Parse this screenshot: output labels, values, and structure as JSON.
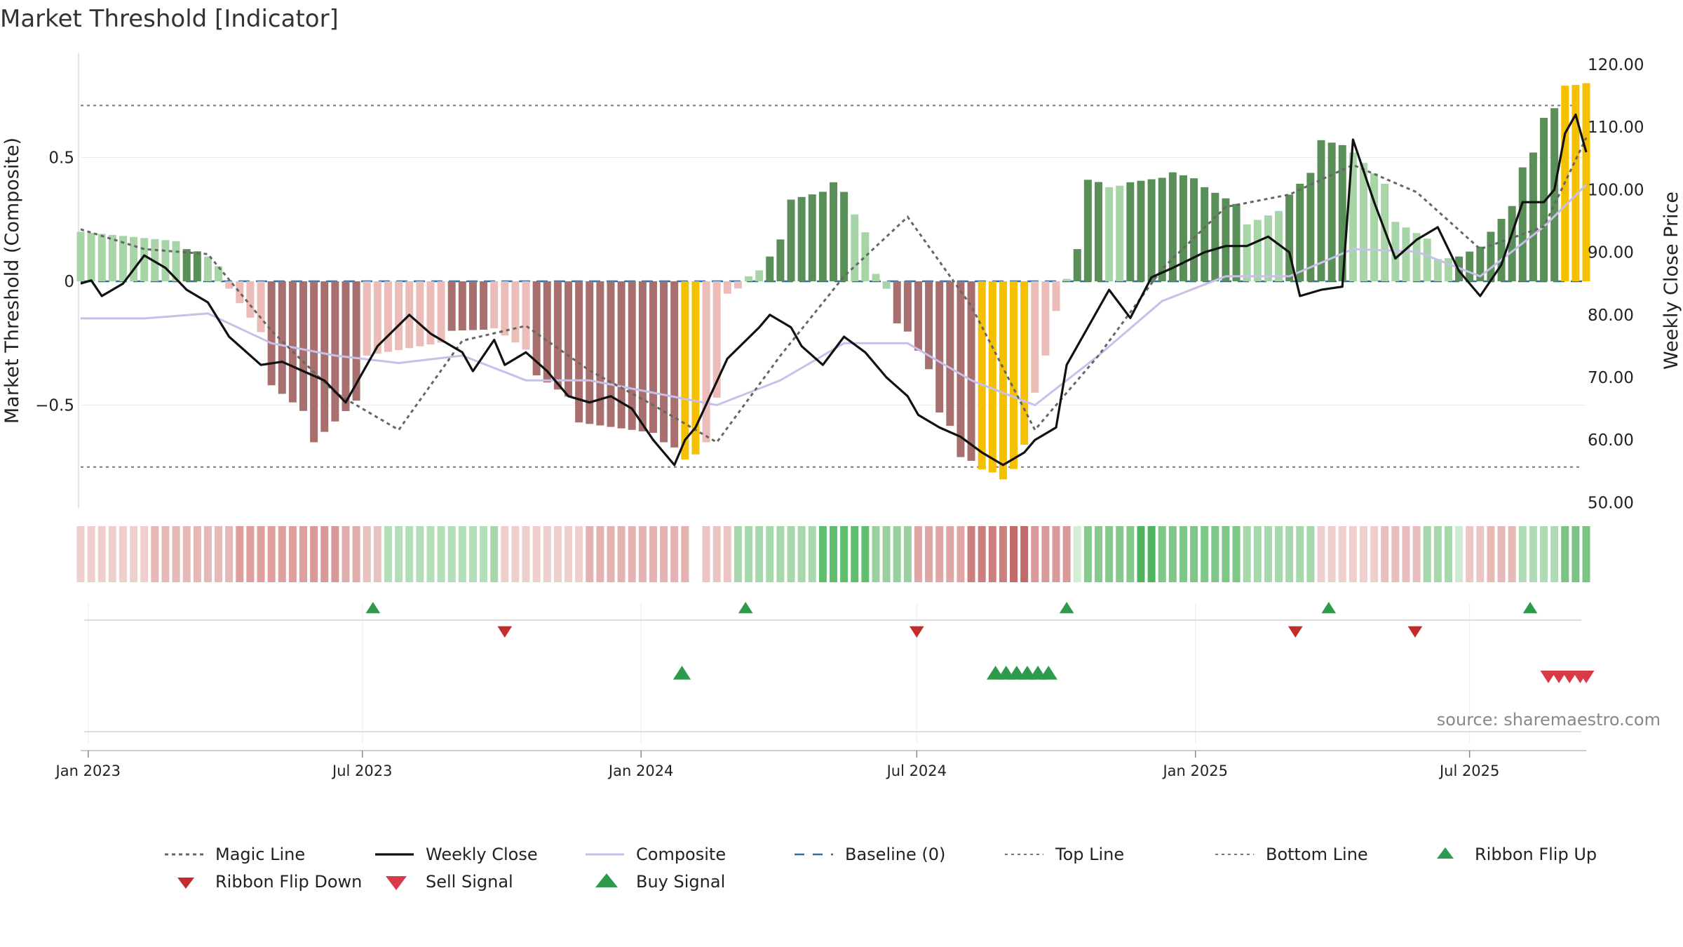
{
  "title": "Market Threshold [Indicator]",
  "source": "source: sharemaestro.com",
  "colors": {
    "pos_strong": "#5a8f5a",
    "pos_weak": "#a8d5a8",
    "neg_strong": "#a86f6f",
    "neg_weak": "#ecbcb8",
    "extreme": "#f5c000",
    "weekly_close": "#111111",
    "composite": "#c7c0e8",
    "magic_line": "#666666",
    "baseline": "#2f6f9f",
    "buy": "#2e9a4c",
    "sell": "#d83a48",
    "flip_down": "#c42b2b"
  },
  "chart_data": {
    "type": "bar",
    "title": "Market Threshold [Indicator]",
    "ylabel": "Market Threshold (Composite)",
    "y2label": "Weekly Close Price",
    "ylim": [
      -0.9,
      0.9
    ],
    "y2lim": [
      47,
      123
    ],
    "x_start": "2022-12-27",
    "x_end": "2025-09-16",
    "yticks": [
      {
        "v": 0.5,
        "label": "0.5"
      },
      {
        "v": 0,
        "label": "0"
      },
      {
        "v": -0.5,
        "label": "−0.5"
      }
    ],
    "y2ticks": [
      {
        "v": 120,
        "label": "120.00"
      },
      {
        "v": 110,
        "label": "110.00"
      },
      {
        "v": 100,
        "label": "100.00"
      },
      {
        "v": 90,
        "label": "90.00"
      },
      {
        "v": 80,
        "label": "80.00"
      },
      {
        "v": 70,
        "label": "70.00"
      },
      {
        "v": 60,
        "label": "60.00"
      },
      {
        "v": 50,
        "label": "50.00"
      }
    ],
    "xticks": [
      {
        "date": "2023-01-01",
        "label": "Jan 2023"
      },
      {
        "date": "2023-07-01",
        "label": "Jul 2023"
      },
      {
        "date": "2024-01-01",
        "label": "Jan 2024"
      },
      {
        "date": "2024-07-01",
        "label": "Jul 2024"
      },
      {
        "date": "2025-01-01",
        "label": "Jan 2025"
      },
      {
        "date": "2025-07-01",
        "label": "Jul 2025"
      }
    ],
    "top_line": 0.71,
    "bottom_line": -0.75,
    "composite_bars": {
      "x": [
        "2022-12-27",
        "2023-03-07",
        "2023-03-21",
        "2023-04-04",
        "2023-05-02",
        "2023-05-30",
        "2023-07-04",
        "2023-08-29",
        "2023-09-26",
        "2023-10-24",
        "2023-11-21",
        "2024-01-16",
        "2024-01-30",
        "2024-02-13",
        "2024-02-27",
        "2024-03-12",
        "2024-03-26",
        "2024-04-09",
        "2024-05-07",
        "2024-05-21",
        "2024-06-04",
        "2024-06-18",
        "2024-07-02",
        "2024-07-16",
        "2024-07-30",
        "2024-08-13",
        "2024-08-27",
        "2024-09-10",
        "2024-09-17",
        "2024-09-24",
        "2024-10-01",
        "2024-10-08",
        "2024-10-15",
        "2024-10-22",
        "2024-11-05",
        "2024-11-19",
        "2024-12-17",
        "2025-01-07",
        "2025-02-04",
        "2025-03-04",
        "2025-03-25",
        "2025-04-15",
        "2025-05-13",
        "2025-06-10",
        "2025-06-24",
        "2025-07-15",
        "2025-08-05",
        "2025-08-19",
        "2025-09-02",
        "2025-09-16"
      ],
      "values": [
        0.2,
        0.13,
        0.1,
        -0.03,
        -0.42,
        -0.65,
        -0.3,
        -0.2,
        -0.19,
        -0.38,
        -0.57,
        -0.65,
        -0.72,
        -0.65,
        -0.05,
        0.02,
        0.1,
        0.33,
        0.4,
        0.27,
        0.03,
        -0.17,
        -0.28,
        -0.53,
        -0.71,
        -0.76,
        -0.8,
        -0.66,
        -0.45,
        -0.3,
        -0.12,
        0.01,
        0.13,
        0.41,
        0.38,
        0.4,
        0.44,
        0.38,
        0.23,
        0.35,
        0.57,
        0.52,
        0.24,
        0.09,
        0.1,
        0.2,
        0.46,
        0.66,
        0.79,
        0.8
      ],
      "colors": [
        "pos_weak",
        "pos_strong",
        "pos_weak",
        "neg_weak",
        "neg_strong",
        "neg_strong",
        "neg_weak",
        "neg_strong",
        "neg_weak",
        "neg_strong",
        "neg_strong",
        "neg_strong",
        "extreme",
        "neg_weak",
        "neg_weak",
        "pos_weak",
        "pos_strong",
        "pos_strong",
        "pos_strong",
        "pos_weak",
        "pos_weak",
        "neg_strong",
        "neg_strong",
        "neg_strong",
        "neg_strong",
        "extreme",
        "extreme",
        "extreme",
        "neg_weak",
        "neg_weak",
        "neg_weak",
        "pos_weak",
        "pos_strong",
        "pos_strong",
        "pos_weak",
        "pos_strong",
        "pos_strong",
        "pos_strong",
        "pos_weak",
        "pos_strong",
        "pos_strong",
        "pos_weak",
        "pos_weak",
        "pos_weak",
        "pos_strong",
        "pos_strong",
        "pos_strong",
        "pos_strong",
        "extreme",
        "extreme"
      ]
    },
    "weekly_close": {
      "x": [
        "2022-12-27",
        "2023-01-03",
        "2023-01-10",
        "2023-01-24",
        "2023-02-07",
        "2023-02-21",
        "2023-03-07",
        "2023-03-21",
        "2023-04-04",
        "2023-04-25",
        "2023-05-09",
        "2023-05-23",
        "2023-06-06",
        "2023-06-20",
        "2023-07-04",
        "2023-07-11",
        "2023-08-01",
        "2023-08-15",
        "2023-08-22",
        "2023-09-05",
        "2023-09-12",
        "2023-09-26",
        "2023-10-03",
        "2023-10-17",
        "2023-10-31",
        "2023-11-14",
        "2023-11-28",
        "2023-12-12",
        "2023-12-26",
        "2024-01-09",
        "2024-01-23",
        "2024-01-30",
        "2024-02-06",
        "2024-02-27",
        "2024-03-19",
        "2024-03-26",
        "2024-04-09",
        "2024-04-16",
        "2024-04-30",
        "2024-05-14",
        "2024-05-28",
        "2024-06-11",
        "2024-06-25",
        "2024-07-02",
        "2024-07-16",
        "2024-07-30",
        "2024-08-13",
        "2024-08-27",
        "2024-09-10",
        "2024-09-17",
        "2024-10-01",
        "2024-10-08",
        "2024-10-22",
        "2024-11-05",
        "2024-11-19",
        "2024-12-03",
        "2024-12-17",
        "2025-01-07",
        "2025-01-21",
        "2025-02-04",
        "2025-02-18",
        "2025-03-04",
        "2025-03-11",
        "2025-03-25",
        "2025-04-08",
        "2025-04-15",
        "2025-04-29",
        "2025-05-13",
        "2025-05-27",
        "2025-06-10",
        "2025-06-24",
        "2025-07-08",
        "2025-07-22",
        "2025-08-05",
        "2025-08-19",
        "2025-08-26",
        "2025-09-02",
        "2025-09-09",
        "2025-09-16"
      ],
      "values": [
        85,
        85.5,
        83,
        85,
        89.5,
        87.5,
        84,
        82,
        76.5,
        72,
        72.5,
        71,
        69.5,
        66,
        72,
        75,
        80,
        77,
        76,
        74,
        71,
        76,
        72,
        74,
        71,
        67,
        66,
        67,
        65,
        60,
        56,
        60,
        62,
        73,
        78,
        80,
        78,
        75,
        72,
        76.5,
        74,
        70,
        67,
        64,
        62,
        60.5,
        58,
        56,
        58,
        60,
        62,
        72,
        78,
        84,
        79.5,
        86,
        87.5,
        90,
        91,
        91,
        92.5,
        90,
        83,
        84,
        84.5,
        108,
        98,
        89,
        92,
        94,
        87,
        83,
        88,
        98,
        98,
        100,
        109,
        112,
        106
      ]
    },
    "composite": {
      "x": [
        "2022-12-27",
        "2023-02-07",
        "2023-03-21",
        "2023-05-02",
        "2023-06-13",
        "2023-07-25",
        "2023-09-05",
        "2023-10-17",
        "2023-11-28",
        "2024-01-09",
        "2024-02-20",
        "2024-04-02",
        "2024-05-14",
        "2024-06-25",
        "2024-08-06",
        "2024-09-17",
        "2024-10-29",
        "2024-12-10",
        "2025-01-21",
        "2025-03-04",
        "2025-04-15",
        "2025-05-27",
        "2025-07-08",
        "2025-08-19",
        "2025-09-16"
      ],
      "values": [
        -0.15,
        -0.15,
        -0.13,
        -0.25,
        -0.3,
        -0.33,
        -0.3,
        -0.4,
        -0.4,
        -0.45,
        -0.5,
        -0.4,
        -0.25,
        -0.25,
        -0.4,
        -0.5,
        -0.3,
        -0.08,
        0.02,
        0.02,
        0.13,
        0.12,
        0.02,
        0.22,
        0.39
      ]
    },
    "magic_line": {
      "x": [
        "2022-12-27",
        "2023-02-07",
        "2023-03-21",
        "2023-05-02",
        "2023-06-13",
        "2023-07-25",
        "2023-09-05",
        "2023-10-17",
        "2023-11-28",
        "2024-01-09",
        "2024-02-20",
        "2024-04-02",
        "2024-05-14",
        "2024-06-25",
        "2024-08-06",
        "2024-09-17",
        "2024-10-29",
        "2024-12-10",
        "2025-01-21",
        "2025-03-04",
        "2025-04-15",
        "2025-05-27",
        "2025-07-08",
        "2025-08-19",
        "2025-09-16"
      ],
      "values": [
        0.21,
        0.13,
        0.11,
        -0.2,
        -0.45,
        -0.6,
        -0.24,
        -0.18,
        -0.36,
        -0.5,
        -0.65,
        -0.3,
        0.02,
        0.26,
        -0.1,
        -0.6,
        -0.3,
        0.05,
        0.3,
        0.35,
        0.47,
        0.36,
        0.13,
        0.22,
        0.58
      ]
    },
    "ribbon": {
      "x_start": "2022-12-27",
      "x_end": "2025-09-16",
      "colors": [
        "#efcfcd",
        "#e6b8b6",
        "#de9f9d",
        "#d79a98",
        "#dfaeab",
        "#e8c2bf",
        "#b3deb8",
        "#a6d8ab",
        "#efcfcd",
        "#e4b3b1",
        "#ffffff",
        "#ecc5c2",
        "#a6d8ab",
        "#5fbf6f",
        "#98d19f",
        "#e0a6a4",
        "#cd7f7d",
        "#c06b69",
        "#d89a98",
        "#d2eed5",
        "#85c98e",
        "#4fb460",
        "#7ec787",
        "#a6d8ab",
        "#efcfcd",
        "#e8bfbd",
        "#a6d8ab",
        "#cfe9d2",
        "#eac7c5",
        "#e6b8b6",
        "#aedbb3",
        "#7cc486"
      ],
      "stops": [
        "2022-12-27",
        "2023-02-14",
        "2023-04-11",
        "2023-05-30",
        "2023-06-20",
        "2023-07-04",
        "2023-07-18",
        "2023-09-26",
        "2023-10-03",
        "2023-11-28",
        "2024-02-06",
        "2024-02-13",
        "2024-03-05",
        "2024-04-30",
        "2024-06-04",
        "2024-07-02",
        "2024-08-06",
        "2024-09-03",
        "2024-09-17",
        "2024-10-15",
        "2024-10-22",
        "2024-11-26",
        "2024-12-10",
        "2025-02-04",
        "2025-03-25",
        "2025-05-06",
        "2025-06-03",
        "2025-06-24",
        "2025-07-01",
        "2025-07-15",
        "2025-08-05",
        "2025-09-02",
        "2025-09-16"
      ]
    },
    "ribbon_flip_up": [
      "2023-07-08",
      "2024-03-10",
      "2024-10-08",
      "2025-03-30",
      "2025-08-10"
    ],
    "ribbon_flip_down": [
      "2023-10-03",
      "2024-07-01",
      "2025-03-08",
      "2025-05-26"
    ],
    "buy_signal": [
      "2024-01-28",
      "2024-08-22",
      "2024-08-29",
      "2024-09-05",
      "2024-09-12",
      "2024-09-19",
      "2024-09-26"
    ],
    "sell_signal": [
      "2025-08-22",
      "2025-08-29",
      "2025-09-05",
      "2025-09-12",
      "2025-09-16"
    ],
    "legend": [
      {
        "key": "magic",
        "label": "Magic Line"
      },
      {
        "key": "close",
        "label": "Weekly Close"
      },
      {
        "key": "composite",
        "label": "Composite"
      },
      {
        "key": "baseline",
        "label": "Baseline (0)"
      },
      {
        "key": "top",
        "label": "Top Line"
      },
      {
        "key": "bottom",
        "label": "Bottom Line"
      },
      {
        "key": "flipup",
        "label": "Ribbon Flip Up"
      },
      {
        "key": "flipdown",
        "label": "Ribbon Flip Down"
      },
      {
        "key": "sell",
        "label": "Sell Signal"
      },
      {
        "key": "buy",
        "label": "Buy Signal"
      }
    ],
    "legend_placement": "bottom"
  }
}
